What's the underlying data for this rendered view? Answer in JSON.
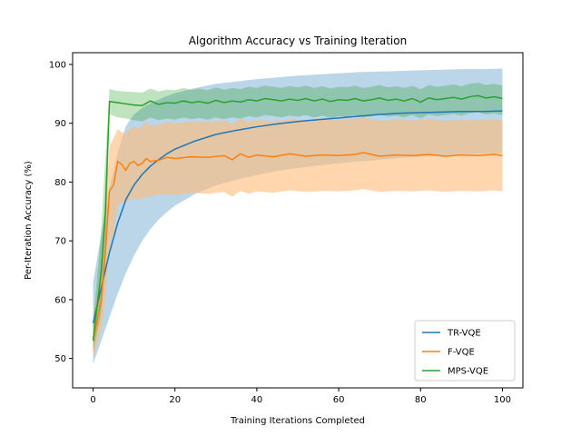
{
  "chart_data": {
    "type": "line",
    "title": "Algorithm Accuracy vs Training Iteration",
    "xlabel": "Training Iterations Completed",
    "ylabel": "Per-Iteration Accuracy (%)",
    "xlim": [
      -5,
      105
    ],
    "ylim": [
      45,
      102
    ],
    "xticks": [
      0,
      20,
      40,
      60,
      80,
      100
    ],
    "yticks": [
      50,
      60,
      70,
      80,
      90,
      100
    ],
    "grid": false,
    "legend_position": "lower-right",
    "series": [
      {
        "name": "TR-VQE",
        "color": "#1f77b4",
        "band_color": "#1f77b4",
        "x": [
          0,
          2,
          4,
          6,
          8,
          10,
          12,
          14,
          16,
          18,
          20,
          25,
          30,
          35,
          40,
          45,
          50,
          55,
          60,
          65,
          70,
          75,
          80,
          85,
          90,
          95,
          100
        ],
        "mean": [
          56,
          62,
          68,
          73,
          77,
          79.5,
          81.3,
          82.7,
          83.8,
          84.8,
          85.6,
          87,
          88.1,
          88.8,
          89.4,
          89.9,
          90.3,
          90.6,
          90.9,
          91.2,
          91.5,
          91.7,
          91.8,
          91.9,
          92,
          92,
          92.1
        ],
        "lower": [
          49,
          53,
          57,
          61,
          64.5,
          67.5,
          70,
          72,
          73.6,
          74.9,
          76,
          78,
          79.4,
          80.4,
          81.2,
          81.9,
          82.4,
          82.8,
          83.2,
          83.5,
          83.8,
          84.1,
          84.3,
          84.5,
          84.7,
          84.8,
          84.9
        ],
        "upper": [
          63,
          71,
          79,
          85,
          89.5,
          91.5,
          92.6,
          93.4,
          94,
          94.6,
          95.1,
          96,
          96.7,
          97.1,
          97.5,
          97.8,
          98.1,
          98.3,
          98.5,
          98.7,
          98.8,
          98.9,
          99,
          99.1,
          99.2,
          99.2,
          99.3
        ]
      },
      {
        "name": "F-VQE",
        "color": "#ff7f0e",
        "band_color": "#ffbb78",
        "x": [
          0,
          2,
          3,
          4,
          5,
          6,
          7,
          8,
          9,
          10,
          11,
          12,
          13,
          14,
          16,
          18,
          20,
          24,
          28,
          32,
          34,
          36,
          38,
          40,
          44,
          48,
          52,
          56,
          60,
          64,
          66,
          70,
          74,
          78,
          82,
          86,
          90,
          94,
          98,
          100
        ],
        "mean": [
          53,
          60,
          68,
          78.5,
          79.5,
          83.5,
          83,
          82,
          83.2,
          83.5,
          82.8,
          83.2,
          84,
          83.5,
          83.7,
          84.2,
          84,
          84.3,
          84.2,
          84.5,
          83.8,
          84.8,
          84.2,
          84.6,
          84.3,
          84.8,
          84.4,
          84.6,
          84.5,
          84.7,
          85,
          84.4,
          84.6,
          84.5,
          84.7,
          84.4,
          84.6,
          84.5,
          84.7,
          84.5
        ],
        "lower": [
          50,
          55,
          60,
          70,
          71,
          76,
          76.5,
          76.5,
          77,
          77.3,
          77,
          77.2,
          77.5,
          77.5,
          77.8,
          78,
          77.8,
          78.2,
          78,
          78.3,
          77.5,
          78.5,
          78,
          78.4,
          78.2,
          78.6,
          78.3,
          78.5,
          78.4,
          78.6,
          78.8,
          78.3,
          78.5,
          78.4,
          78.6,
          78.3,
          78.5,
          78.4,
          78.6,
          78.4
        ],
        "upper": [
          57,
          65,
          76,
          86,
          87.5,
          89,
          88.5,
          88.3,
          89,
          89.5,
          89,
          89.5,
          90.3,
          89.5,
          89.7,
          90.2,
          90,
          90.3,
          90.2,
          90.5,
          89.8,
          90.8,
          90.2,
          90.6,
          90.3,
          90.8,
          90.4,
          90.6,
          90.5,
          90.7,
          91,
          90.4,
          90.6,
          90.5,
          90.7,
          90.4,
          90.6,
          90.5,
          90.7,
          90.5
        ]
      },
      {
        "name": "MPS-VQE",
        "color": "#2ca02c",
        "band_color": "#2ca02c",
        "x": [
          0,
          2,
          3,
          4,
          6,
          8,
          10,
          12,
          14,
          16,
          18,
          20,
          22,
          24,
          26,
          28,
          30,
          32,
          34,
          36,
          38,
          40,
          42,
          44,
          46,
          48,
          50,
          52,
          54,
          56,
          58,
          60,
          62,
          64,
          66,
          68,
          70,
          72,
          74,
          76,
          78,
          80,
          82,
          84,
          86,
          88,
          90,
          92,
          94,
          96,
          98,
          100
        ],
        "mean": [
          53,
          65,
          75,
          93.7,
          93.5,
          93.3,
          93.1,
          93,
          93.8,
          93.2,
          93.5,
          93.4,
          93.8,
          93.5,
          93.7,
          93.4,
          93.9,
          93.5,
          93.8,
          93.6,
          94,
          93.8,
          94.2,
          94,
          93.8,
          94.1,
          93.9,
          94.2,
          93.8,
          94.1,
          93.7,
          94,
          93.9,
          94.2,
          93.8,
          94,
          94.3,
          93.9,
          94.1,
          93.8,
          94.2,
          93.6,
          94.3,
          94,
          94.2,
          94.4,
          94.1,
          94.5,
          94.7,
          94.3,
          94.5,
          94.2
        ],
        "lower": [
          51,
          58,
          66,
          91.5,
          91,
          90.8,
          90.5,
          90.3,
          91,
          90.5,
          90.8,
          90.6,
          91,
          90.7,
          90.9,
          90.6,
          91,
          90.7,
          91,
          90.8,
          91.2,
          91,
          91.4,
          91.2,
          91,
          91.3,
          91.1,
          91.4,
          91,
          91.3,
          90.9,
          91.2,
          91.1,
          91.4,
          91,
          91.2,
          91.5,
          91.1,
          91.3,
          91,
          91.4,
          90.8,
          91.5,
          91.2,
          91.4,
          91.6,
          91.3,
          91.7,
          91.9,
          91.5,
          91.7,
          91.4
        ],
        "upper": [
          56,
          72,
          84,
          95.8,
          95.5,
          95.4,
          95.3,
          95.2,
          95.9,
          95.4,
          95.7,
          95.6,
          96,
          95.7,
          95.9,
          95.6,
          96.1,
          95.7,
          96,
          95.8,
          96.2,
          96,
          96.4,
          96.2,
          96,
          96.3,
          96.1,
          96.4,
          96,
          96.3,
          95.9,
          96.2,
          96.1,
          96.4,
          96,
          96.2,
          96.5,
          96.1,
          96.3,
          96,
          96.4,
          95.8,
          96.5,
          96.2,
          96.4,
          96.6,
          96.3,
          96.7,
          96.9,
          96.5,
          96.7,
          96.4
        ]
      }
    ]
  }
}
